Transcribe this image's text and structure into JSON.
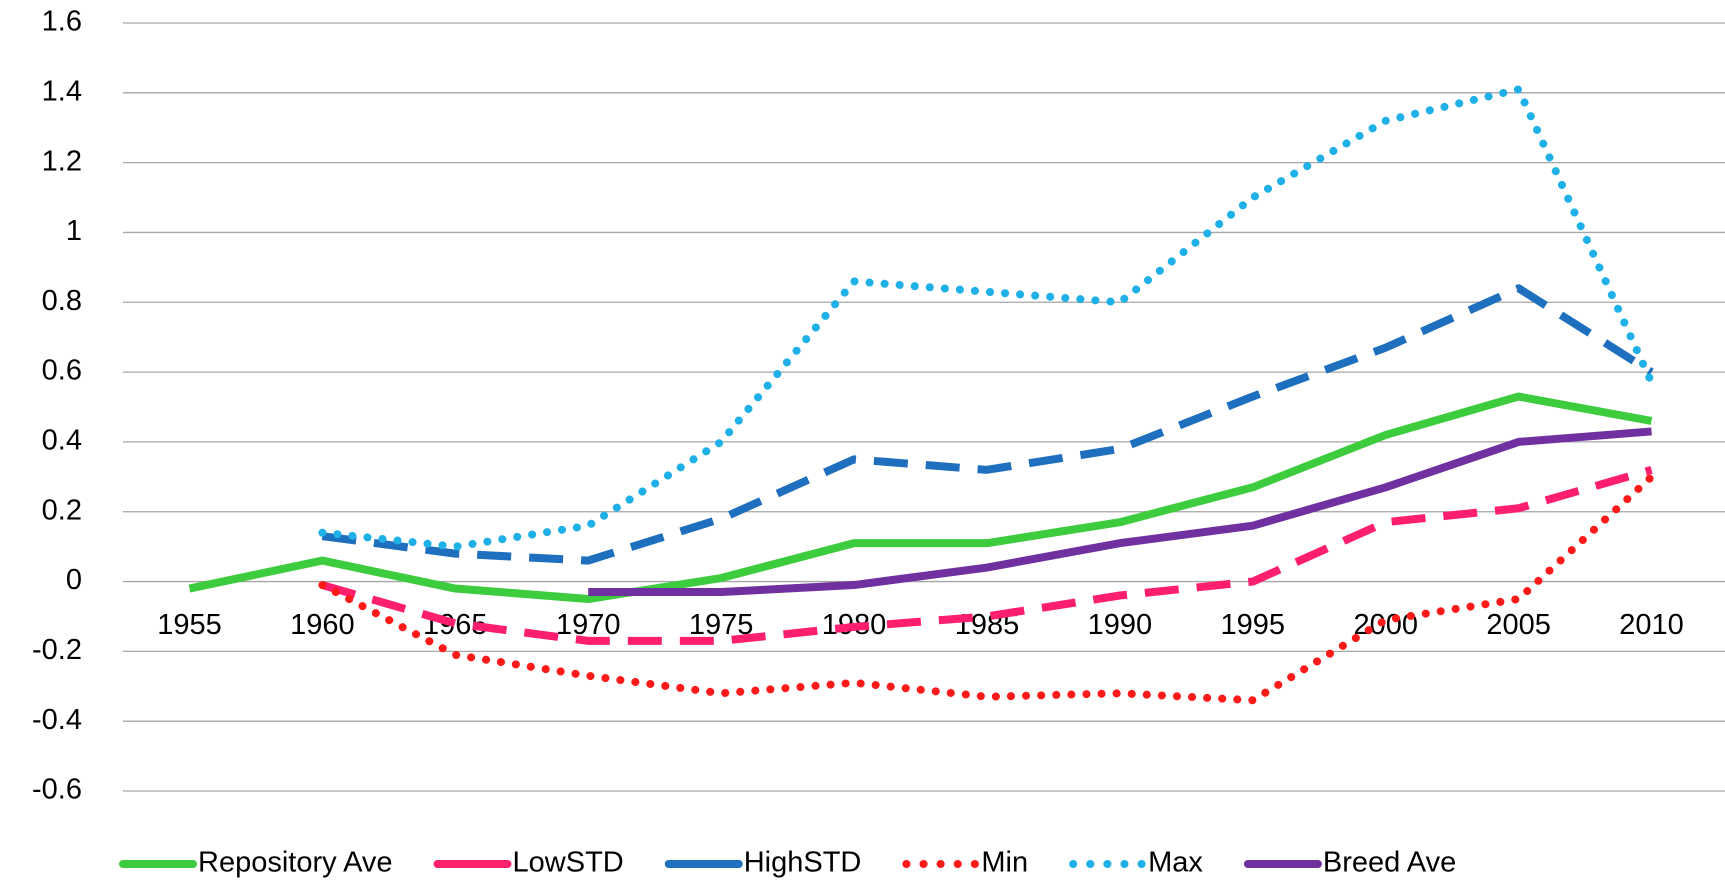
{
  "chart_data": {
    "type": "line",
    "categories": [
      "1955",
      "1960",
      "1965",
      "1970",
      "1975",
      "1980",
      "1985",
      "1990",
      "1995",
      "2000",
      "2005",
      "2010"
    ],
    "series": [
      {
        "name": "Repository Ave",
        "color": "#3dcc3d",
        "dash": "solid",
        "values": [
          -0.02,
          0.06,
          -0.02,
          -0.05,
          0.01,
          0.11,
          0.11,
          0.17,
          0.27,
          0.42,
          0.53,
          0.46
        ]
      },
      {
        "name": "LowSTD",
        "color": "#ff1f6e",
        "dash": "dash",
        "values": [
          null,
          -0.01,
          -0.12,
          -0.17,
          -0.17,
          -0.13,
          -0.1,
          -0.04,
          0.0,
          0.17,
          0.21,
          0.32
        ]
      },
      {
        "name": "HighSTD",
        "color": "#1f6fbf",
        "dash": "dash",
        "values": [
          null,
          0.13,
          0.08,
          0.06,
          0.18,
          0.35,
          0.32,
          0.38,
          0.53,
          0.67,
          0.84,
          0.6
        ]
      },
      {
        "name": "Min",
        "color": "#ff1a1a",
        "dash": "dot",
        "values": [
          null,
          -0.01,
          -0.21,
          -0.27,
          -0.32,
          -0.29,
          -0.33,
          -0.32,
          -0.34,
          -0.11,
          -0.05,
          0.3
        ]
      },
      {
        "name": "Max",
        "color": "#1fb0e8",
        "dash": "dot",
        "values": [
          null,
          0.14,
          0.1,
          0.16,
          0.4,
          0.86,
          0.83,
          0.8,
          1.1,
          1.32,
          1.41,
          0.57
        ]
      },
      {
        "name": "Breed Ave",
        "color": "#7030a0",
        "dash": "solid",
        "values": [
          null,
          null,
          null,
          -0.03,
          -0.03,
          -0.01,
          0.04,
          0.11,
          0.16,
          0.27,
          0.4,
          0.43
        ]
      }
    ],
    "ylim": [
      -0.6,
      1.6
    ],
    "yticks": [
      -0.6,
      -0.4,
      -0.2,
      0,
      0.2,
      0.4,
      0.6,
      0.8,
      1,
      1.2,
      1.4,
      1.6
    ],
    "grid": true,
    "legend": "bottom"
  }
}
